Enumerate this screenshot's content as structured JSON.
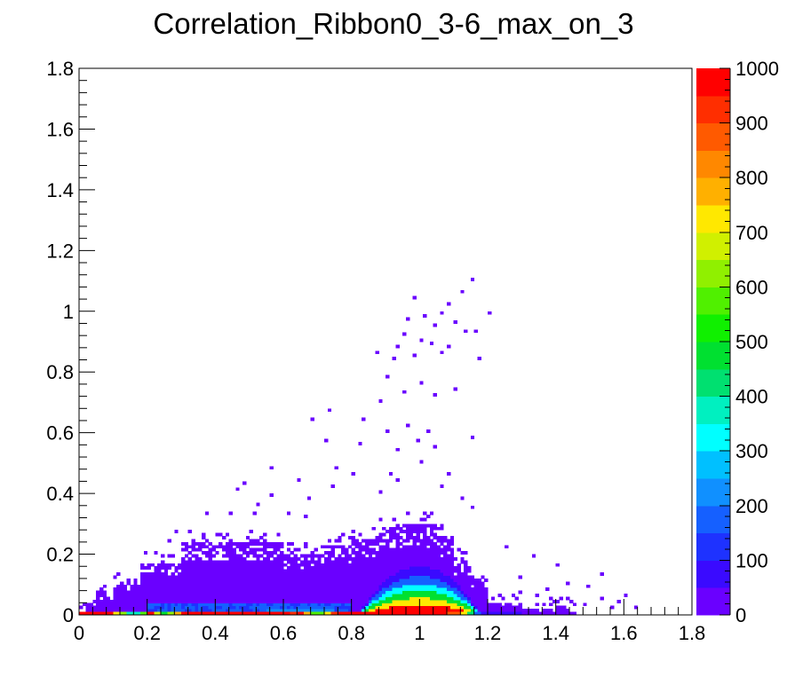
{
  "chart_data": {
    "type": "heatmap",
    "title": "Correlation_Ribbon0_3-6_max_on_3",
    "xlabel": "",
    "ylabel": "",
    "xlim": [
      0,
      1.8
    ],
    "ylim": [
      0,
      1.8
    ],
    "x_ticks": [
      "0",
      "0.2",
      "0.4",
      "0.6",
      "0.8",
      "1",
      "1.2",
      "1.4",
      "1.6",
      "1.8"
    ],
    "y_ticks": [
      "0",
      "0.2",
      "0.4",
      "0.6",
      "0.8",
      "1",
      "1.2",
      "1.4",
      "1.6",
      "1.8"
    ],
    "bins": {
      "x_bin_width": 0.01,
      "y_bin_width": 0.01
    },
    "colorbar": {
      "zlim": [
        0,
        1000
      ],
      "ticks": [
        "0",
        "100",
        "200",
        "300",
        "400",
        "500",
        "600",
        "700",
        "800",
        "900",
        "1000"
      ],
      "colors": [
        "#6a00ff",
        "#3a0aff",
        "#1e32ff",
        "#1560ff",
        "#1090ff",
        "#00c0ff",
        "#00ffff",
        "#00f0c0",
        "#00e070",
        "#00e030",
        "#10f000",
        "#50f000",
        "#90f000",
        "#d0f000",
        "#ffe800",
        "#ffb000",
        "#ff8800",
        "#ff5a00",
        "#ff2e00",
        "#ff0000"
      ]
    },
    "cells": [
      {
        "x": 0.0,
        "y": 0.0,
        "w": 0.1,
        "h": 0.01,
        "z": 1000
      },
      {
        "x": 0.1,
        "y": 0.0,
        "w": 0.02,
        "h": 0.01,
        "z": 720
      },
      {
        "x": 0.12,
        "y": 0.0,
        "w": 0.02,
        "h": 0.01,
        "z": 600
      },
      {
        "x": 0.14,
        "y": 0.0,
        "w": 0.04,
        "h": 0.01,
        "z": 360
      },
      {
        "x": 0.18,
        "y": 0.0,
        "w": 0.02,
        "h": 0.01,
        "z": 560
      },
      {
        "x": 0.2,
        "y": 0.0,
        "w": 0.02,
        "h": 0.01,
        "z": 1000
      },
      {
        "x": 0.22,
        "y": 0.0,
        "w": 0.02,
        "h": 0.01,
        "z": 680
      },
      {
        "x": 0.24,
        "y": 0.0,
        "w": 0.02,
        "h": 0.01,
        "z": 460
      },
      {
        "x": 0.26,
        "y": 0.0,
        "w": 0.02,
        "h": 0.01,
        "z": 620
      },
      {
        "x": 0.28,
        "y": 0.0,
        "w": 0.02,
        "h": 0.01,
        "z": 760
      },
      {
        "x": 0.3,
        "y": 0.0,
        "w": 0.32,
        "h": 0.01,
        "z": 1000
      },
      {
        "x": 0.62,
        "y": 0.0,
        "w": 0.02,
        "h": 0.01,
        "z": 900
      },
      {
        "x": 0.64,
        "y": 0.0,
        "w": 0.02,
        "h": 0.01,
        "z": 1000
      },
      {
        "x": 0.66,
        "y": 0.0,
        "w": 0.02,
        "h": 0.01,
        "z": 760
      },
      {
        "x": 0.68,
        "y": 0.0,
        "w": 0.04,
        "h": 0.01,
        "z": 560
      },
      {
        "x": 0.72,
        "y": 0.0,
        "w": 0.02,
        "h": 0.01,
        "z": 720
      },
      {
        "x": 0.74,
        "y": 0.0,
        "w": 0.02,
        "h": 0.01,
        "z": 920
      },
      {
        "x": 0.76,
        "y": 0.0,
        "w": 0.32,
        "h": 0.01,
        "z": 1000
      },
      {
        "x": 1.08,
        "y": 0.0,
        "w": 0.04,
        "h": 0.01,
        "z": 880
      },
      {
        "x": 1.12,
        "y": 0.0,
        "w": 0.02,
        "h": 0.01,
        "z": 700
      },
      {
        "x": 1.14,
        "y": 0.0,
        "w": 0.02,
        "h": 0.01,
        "z": 420
      },
      {
        "x": 1.16,
        "y": 0.0,
        "w": 0.02,
        "h": 0.01,
        "z": 180
      },
      {
        "x": 1.18,
        "y": 0.0,
        "w": 0.12,
        "h": 0.01,
        "z": 60
      },
      {
        "x": 1.3,
        "y": 0.0,
        "w": 0.16,
        "h": 0.01,
        "z": 10
      }
    ]
  }
}
